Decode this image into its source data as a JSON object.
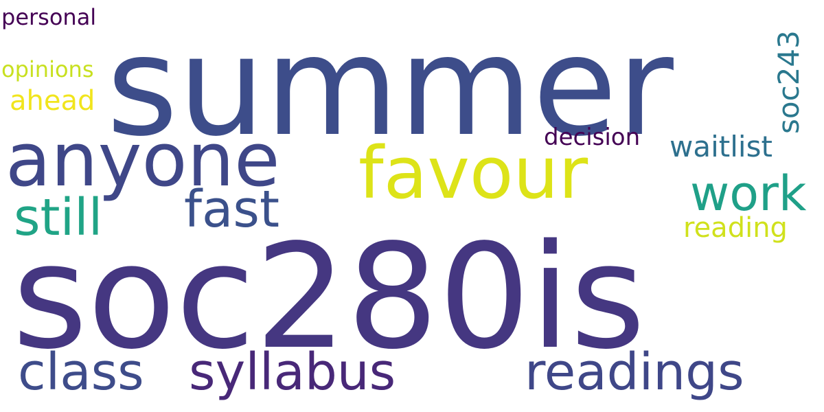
{
  "words": [
    {
      "id": "soc280is",
      "text": "soc280is",
      "color": "#453781",
      "rotated": false
    },
    {
      "id": "summer",
      "text": "summer",
      "color": "#3d4d8a",
      "rotated": false
    },
    {
      "id": "anyone",
      "text": "anyone",
      "color": "#3f4788",
      "rotated": false
    },
    {
      "id": "favour",
      "text": "favour",
      "color": "#dde318",
      "rotated": false
    },
    {
      "id": "readings",
      "text": "readings",
      "color": "#3f4788",
      "rotated": false
    },
    {
      "id": "syllabus",
      "text": "syllabus",
      "color": "#482878",
      "rotated": false
    },
    {
      "id": "class",
      "text": "class",
      "color": "#3e4c8a",
      "rotated": false
    },
    {
      "id": "fast",
      "text": "fast",
      "color": "#3b518b",
      "rotated": false
    },
    {
      "id": "still",
      "text": "still",
      "color": "#20a486",
      "rotated": false
    },
    {
      "id": "work",
      "text": "work",
      "color": "#1fa088",
      "rotated": false
    },
    {
      "id": "waitlist",
      "text": "waitlist",
      "color": "#2d708e",
      "rotated": false
    },
    {
      "id": "reading",
      "text": "reading",
      "color": "#d0e11c",
      "rotated": false
    },
    {
      "id": "soc243",
      "text": "soc243",
      "color": "#2a788e",
      "rotated": true
    },
    {
      "id": "decision",
      "text": "decision",
      "color": "#440154",
      "rotated": false
    },
    {
      "id": "ahead",
      "text": "ahead",
      "color": "#f1e51d",
      "rotated": false
    },
    {
      "id": "opinions",
      "text": "opinions",
      "color": "#c8e020",
      "rotated": false
    },
    {
      "id": "personal",
      "text": "personal",
      "color": "#440154",
      "rotated": false
    }
  ]
}
